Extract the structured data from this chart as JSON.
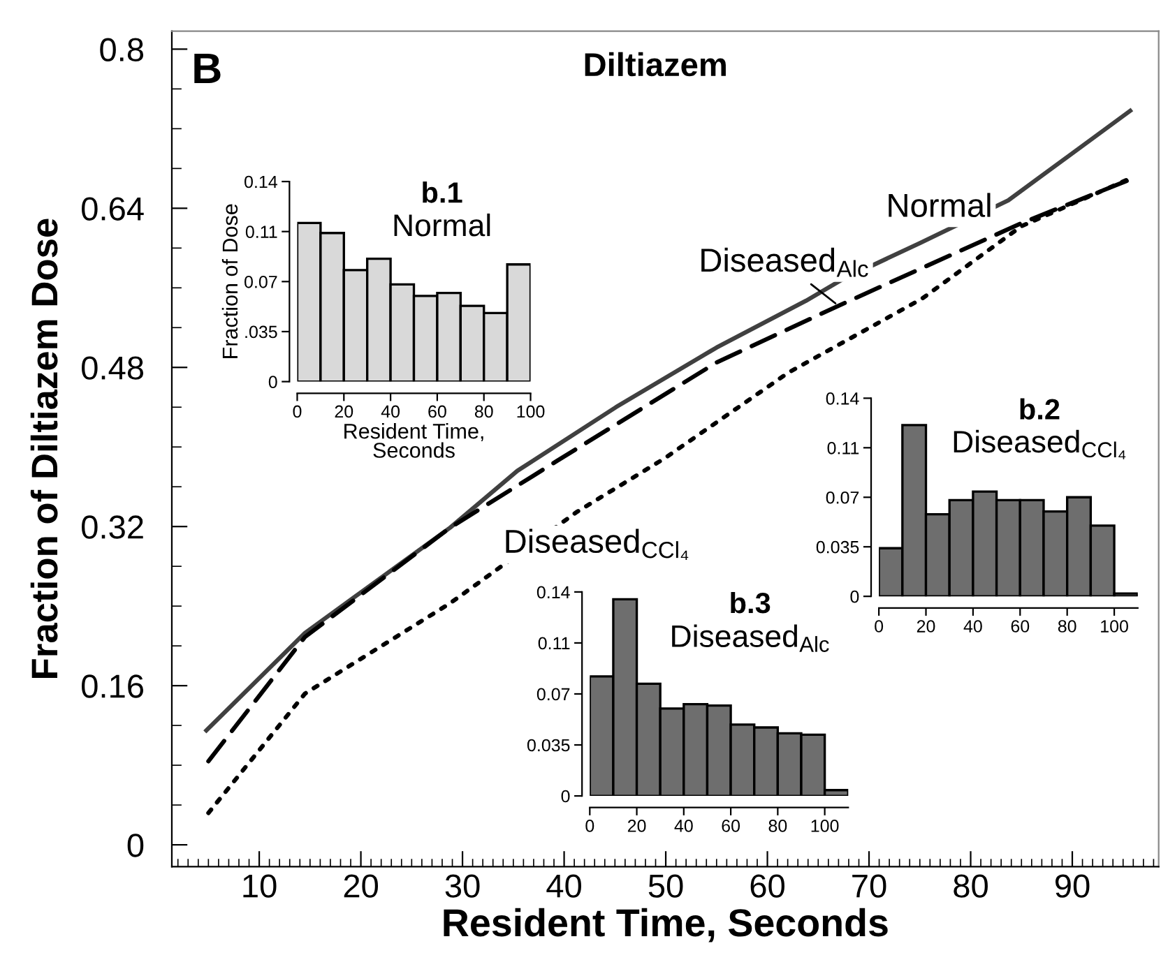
{
  "chart_data": [
    {
      "type": "line",
      "title": "Diltiazem",
      "xlabel": "Resident Time, Seconds",
      "ylabel": "Fraction of Diltiazem Dose",
      "annotations": [
        "B"
      ],
      "xlim": [
        1.4,
        98.5
      ],
      "ylim": [
        -0.022,
        0.818
      ],
      "xticks": [
        {
          "value": 2,
          "label": null
        },
        {
          "value": 3,
          "label": null
        },
        {
          "value": 4,
          "label": null
        },
        {
          "value": 5,
          "label": null
        },
        {
          "value": 6,
          "label": null
        },
        {
          "value": 7,
          "label": null
        },
        {
          "value": 8,
          "label": null
        },
        {
          "value": 9,
          "label": null
        },
        10,
        {
          "value": 11,
          "label": null
        },
        {
          "value": 12,
          "label": null
        },
        {
          "value": 13,
          "label": null
        },
        {
          "value": 14,
          "label": null
        },
        {
          "value": 15,
          "label": null
        },
        {
          "value": 16,
          "label": null
        },
        {
          "value": 17,
          "label": null
        },
        {
          "value": 18,
          "label": null
        },
        {
          "value": 19,
          "label": null
        },
        20,
        {
          "value": 21,
          "label": null
        },
        {
          "value": 22,
          "label": null
        },
        {
          "value": 23,
          "label": null
        },
        {
          "value": 24,
          "label": null
        },
        {
          "value": 25,
          "label": null
        },
        {
          "value": 26,
          "label": null
        },
        {
          "value": 27,
          "label": null
        },
        {
          "value": 28,
          "label": null
        },
        {
          "value": 29,
          "label": null
        },
        30,
        {
          "value": 31,
          "label": null
        },
        {
          "value": 32,
          "label": null
        },
        {
          "value": 33,
          "label": null
        },
        {
          "value": 34,
          "label": null
        },
        {
          "value": 35,
          "label": null
        },
        {
          "value": 36,
          "label": null
        },
        {
          "value": 37,
          "label": null
        },
        {
          "value": 38,
          "label": null
        },
        {
          "value": 39,
          "label": null
        },
        40,
        {
          "value": 41,
          "label": null
        },
        {
          "value": 42,
          "label": null
        },
        {
          "value": 43,
          "label": null
        },
        {
          "value": 44,
          "label": null
        },
        {
          "value": 45,
          "label": null
        },
        {
          "value": 46,
          "label": null
        },
        {
          "value": 47,
          "label": null
        },
        {
          "value": 48,
          "label": null
        },
        {
          "value": 49,
          "label": null
        },
        50,
        {
          "value": 51,
          "label": null
        },
        {
          "value": 52,
          "label": null
        },
        {
          "value": 53,
          "label": null
        },
        {
          "value": 54,
          "label": null
        },
        {
          "value": 55,
          "label": null
        },
        {
          "value": 56,
          "label": null
        },
        {
          "value": 57,
          "label": null
        },
        {
          "value": 58,
          "label": null
        },
        {
          "value": 59,
          "label": null
        },
        60,
        {
          "value": 61,
          "label": null
        },
        {
          "value": 62,
          "label": null
        },
        {
          "value": 63,
          "label": null
        },
        {
          "value": 64,
          "label": null
        },
        {
          "value": 65,
          "label": null
        },
        {
          "value": 66,
          "label": null
        },
        {
          "value": 67,
          "label": null
        },
        {
          "value": 68,
          "label": null
        },
        {
          "value": 69,
          "label": null
        },
        70,
        {
          "value": 71,
          "label": null
        },
        {
          "value": 72,
          "label": null
        },
        {
          "value": 73,
          "label": null
        },
        {
          "value": 74,
          "label": null
        },
        {
          "value": 75,
          "label": null
        },
        {
          "value": 76,
          "label": null
        },
        {
          "value": 77,
          "label": null
        },
        {
          "value": 78,
          "label": null
        },
        {
          "value": 79,
          "label": null
        },
        80,
        {
          "value": 81,
          "label": null
        },
        {
          "value": 82,
          "label": null
        },
        {
          "value": 83,
          "label": null
        },
        {
          "value": 84,
          "label": null
        },
        {
          "value": 85,
          "label": null
        },
        {
          "value": 86,
          "label": null
        },
        {
          "value": 87,
          "label": null
        },
        {
          "value": 88,
          "label": null
        },
        {
          "value": 89,
          "label": null
        },
        90,
        {
          "value": 91,
          "label": null
        },
        {
          "value": 92,
          "label": null
        },
        {
          "value": 93,
          "label": null
        },
        {
          "value": 94,
          "label": null
        },
        {
          "value": 95,
          "label": null
        },
        {
          "value": 96,
          "label": null
        },
        {
          "value": 97,
          "label": null
        },
        {
          "value": 98,
          "label": null
        }
      ],
      "yticks": [
        0,
        {
          "value": 0.04,
          "label": null
        },
        {
          "value": 0.08,
          "label": null
        },
        {
          "value": 0.12,
          "label": null
        },
        0.16,
        {
          "value": 0.2,
          "label": null
        },
        {
          "value": 0.24,
          "label": null
        },
        {
          "value": 0.28,
          "label": null
        },
        0.32,
        {
          "value": 0.36,
          "label": null
        },
        {
          "value": 0.4,
          "label": null
        },
        {
          "value": 0.44,
          "label": null
        },
        0.48,
        {
          "value": 0.52,
          "label": null
        },
        {
          "value": 0.56,
          "label": null
        },
        {
          "value": 0.6,
          "label": null
        },
        0.64,
        {
          "value": 0.68,
          "label": null
        },
        {
          "value": 0.72,
          "label": null
        },
        {
          "value": 0.76,
          "label": null
        },
        0.8
      ],
      "grid": false,
      "legend": false,
      "marker": "none",
      "series": [
        {
          "name": "Normal",
          "color": "#404040",
          "line_style": "solid",
          "x": [
            4.8,
            14.5,
            28.8,
            35.4,
            45.1,
            55,
            63.8,
            67.3,
            75,
            83.7,
            95.7
          ],
          "values": [
            0.115,
            0.213,
            0.319,
            0.376,
            0.44,
            0.5,
            0.547,
            0.568,
            0.605,
            0.648,
            0.738
          ]
        },
        {
          "name": "Diseased$_{Alc}$",
          "color": "#000000",
          "line_style": "dashed",
          "x": [
            5,
            14.5,
            28.8,
            39.3,
            55,
            67,
            85,
            95.7
          ],
          "values": [
            0.084,
            0.209,
            0.319,
            0.386,
            0.485,
            0.542,
            0.625,
            0.669
          ]
        },
        {
          "name": "Diseased$_{CCl₄}$",
          "color": "#000000",
          "line_style": "dotted",
          "x": [
            5,
            14.5,
            28.8,
            41.3,
            49.8,
            62.1,
            75.2,
            85,
            95.7
          ],
          "values": [
            0.032,
            0.152,
            0.243,
            0.335,
            0.388,
            0.475,
            0.549,
            0.622,
            0.67
          ]
        }
      ]
    },
    {
      "type": "histogram",
      "title": "b.1",
      "subtitle": "Normal",
      "xlabel": "Resident Time,\nSeconds",
      "ylabel": "Fraction of Dose",
      "color": "#d9d9d9",
      "bins": [
        0,
        10,
        20,
        30,
        40,
        50,
        60,
        70,
        80,
        90,
        100
      ],
      "values": [
        0.111,
        0.104,
        0.078,
        0.086,
        0.068,
        0.06,
        0.062,
        0.053,
        0.048,
        0.082
      ],
      "xlim": [
        0,
        100
      ],
      "xticks": [
        0,
        20,
        40,
        60,
        80,
        100
      ],
      "ylim": [
        0,
        0.14
      ],
      "yticks": [
        0,
        {
          "value": 0.035,
          "label": ".035"
        },
        0.07,
        {
          "value": 0.105,
          "label": "0.11"
        },
        0.14
      ],
      "grid": false,
      "legend": false
    },
    {
      "type": "histogram",
      "title": "b.2",
      "subtitle": "Diseased$_{CCl₄}$",
      "color": "#6e6e6e",
      "bins": [
        0,
        10,
        20,
        30,
        40,
        50,
        60,
        70,
        80,
        90,
        100,
        110
      ],
      "values": [
        0.034,
        0.121,
        0.058,
        0.068,
        0.074,
        0.068,
        0.068,
        0.06,
        0.07,
        0.05,
        0.002
      ],
      "xlim": [
        0,
        110
      ],
      "xticks": [
        0,
        20,
        40,
        60,
        80,
        100
      ],
      "ylim": [
        0,
        0.14
      ],
      "yticks": [
        0,
        0.035,
        0.07,
        {
          "value": 0.105,
          "label": "0.11"
        },
        0.14
      ],
      "grid": false,
      "legend": false
    },
    {
      "type": "histogram",
      "title": "b.3",
      "subtitle": "Diseased$_{Alc}$",
      "color": "#6e6e6e",
      "bins": [
        0,
        10,
        20,
        30,
        40,
        50,
        60,
        70,
        80,
        90,
        100,
        110
      ],
      "values": [
        0.082,
        0.135,
        0.077,
        0.06,
        0.063,
        0.062,
        0.049,
        0.047,
        0.043,
        0.042,
        0.004
      ],
      "xlim": [
        0,
        110
      ],
      "xticks": [
        0,
        20,
        40,
        60,
        80,
        100
      ],
      "ylim": [
        0,
        0.14
      ],
      "yticks": [
        0,
        0.035,
        0.07,
        {
          "value": 0.105,
          "label": "0.11"
        },
        0.14
      ],
      "grid": false,
      "legend": false
    }
  ]
}
